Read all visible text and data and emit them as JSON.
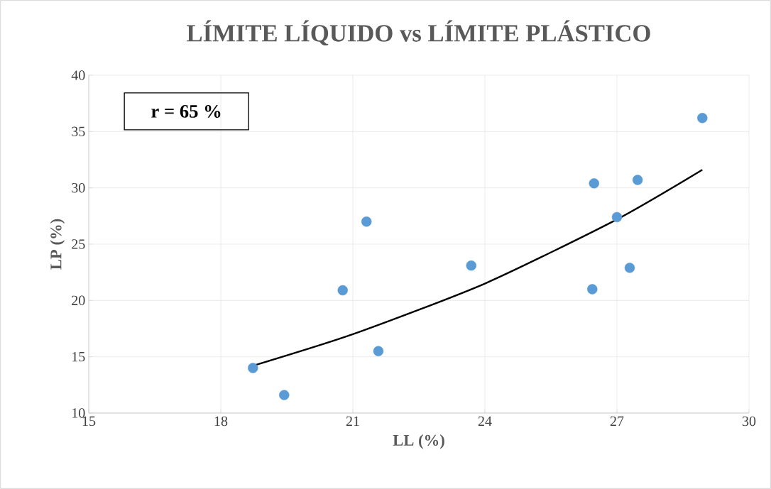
{
  "chart_data": {
    "type": "scatter",
    "title": "LÍMITE LÍQUIDO vs LÍMITE PLÁSTICO",
    "xlabel": "LL (%)",
    "ylabel": "LP (%)",
    "annotations": [
      "r = 65  %"
    ],
    "xlim": [
      15,
      30
    ],
    "xticks": [
      15,
      18,
      21,
      24,
      27,
      30
    ],
    "ylim": [
      10,
      40
    ],
    "yticks": [
      10,
      15,
      20,
      25,
      30,
      35,
      40
    ],
    "grid": true,
    "series": [
      {
        "marker": "circle",
        "color": "#5b9bd5",
        "x": [
          18.73,
          19.44,
          20.77,
          21.31,
          21.58,
          23.69,
          26.44,
          26.48,
          27.0,
          27.29,
          27.47,
          28.94
        ],
        "values": [
          14.0,
          11.6,
          20.9,
          27.0,
          15.5,
          23.1,
          21.0,
          30.4,
          27.4,
          22.9,
          30.7,
          36.2
        ]
      },
      {
        "type": "line",
        "marker": "none",
        "color": "#000000",
        "x": [
          18.73,
          21,
          24,
          27,
          28.94
        ],
        "values": [
          14.2,
          17.0,
          21.5,
          27.2,
          31.6
        ]
      }
    ]
  }
}
